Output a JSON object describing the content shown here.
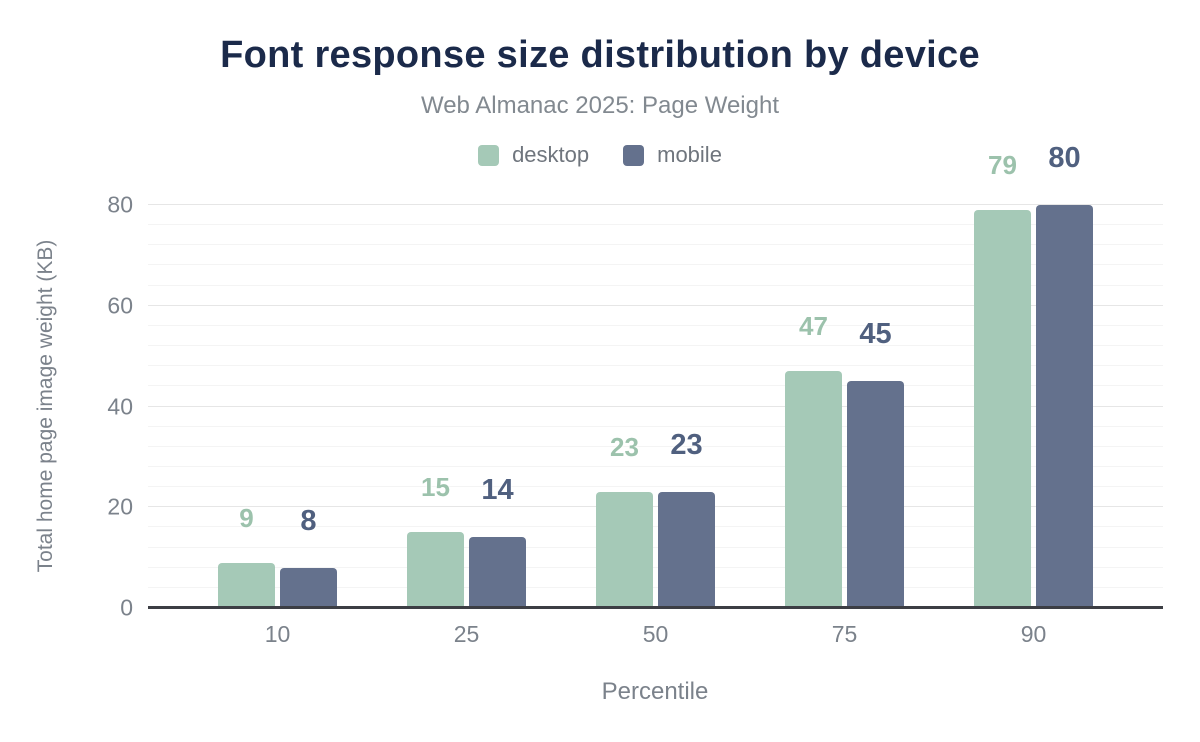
{
  "title": "Font response size distribution by device",
  "subtitle": "Web Almanac 2025: Page Weight",
  "chart_data": {
    "type": "bar",
    "categories": [
      "10",
      "25",
      "50",
      "75",
      "90"
    ],
    "series": [
      {
        "name": "desktop",
        "values": [
          9,
          15,
          23,
          47,
          79
        ],
        "color": "#a5c9b7",
        "label_color": "#9cc2ac"
      },
      {
        "name": "mobile",
        "values": [
          8,
          14,
          23,
          45,
          80
        ],
        "color": "#64718d",
        "label_color": "#50607f"
      }
    ],
    "xlabel": "Percentile",
    "ylabel": "Total home page image weight (KB)",
    "ylim": [
      0,
      80
    ],
    "yticks": [
      0,
      20,
      40,
      60,
      80
    ],
    "minor_grid_step": 4,
    "major_grid_step": 20,
    "grid": "horizontal, major and minor lines",
    "legend_position": "top-center",
    "title_color": "#1b2a4a",
    "axis_line_color": "#3c3e44",
    "tick_label_color": "#7b828b"
  }
}
